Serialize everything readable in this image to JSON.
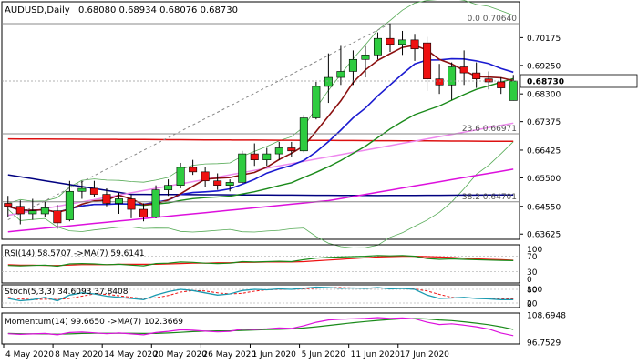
{
  "chart_data": {
    "type": "candlestick",
    "main": {
      "title": "AUDUSD,Daily",
      "ohlc": "0.68080 0.68934 0.68076 0.68730",
      "last_price": "0.68730",
      "ylim": [
        0.6345,
        0.7137
      ],
      "y_ticks": [
        "0.70175",
        "0.69250",
        "0.68300",
        "0.67375",
        "0.66425",
        "0.65500",
        "0.64550",
        "0.63625"
      ],
      "fib_levels": [
        {
          "label": "0.0 0.70640",
          "value": 0.7064
        },
        {
          "label": "23.6 0.66971",
          "value": 0.66971
        },
        {
          "label": "38.2 0.64701",
          "value": 0.64701
        }
      ],
      "candles": [
        {
          "o": 0.6465,
          "h": 0.649,
          "l": 0.642,
          "c": 0.6455
        },
        {
          "o": 0.6455,
          "h": 0.6475,
          "l": 0.6395,
          "c": 0.643
        },
        {
          "o": 0.643,
          "h": 0.648,
          "l": 0.641,
          "c": 0.644
        },
        {
          "o": 0.643,
          "h": 0.647,
          "l": 0.642,
          "c": 0.645
        },
        {
          "o": 0.644,
          "h": 0.646,
          "l": 0.638,
          "c": 0.64
        },
        {
          "o": 0.641,
          "h": 0.654,
          "l": 0.6405,
          "c": 0.6505
        },
        {
          "o": 0.6505,
          "h": 0.654,
          "l": 0.648,
          "c": 0.6515
        },
        {
          "o": 0.6515,
          "h": 0.654,
          "l": 0.6485,
          "c": 0.6495
        },
        {
          "o": 0.6495,
          "h": 0.6515,
          "l": 0.6455,
          "c": 0.6465
        },
        {
          "o": 0.6465,
          "h": 0.65,
          "l": 0.643,
          "c": 0.648
        },
        {
          "o": 0.648,
          "h": 0.6495,
          "l": 0.6415,
          "c": 0.6445
        },
        {
          "o": 0.6445,
          "h": 0.6465,
          "l": 0.6405,
          "c": 0.642
        },
        {
          "o": 0.642,
          "h": 0.6525,
          "l": 0.6415,
          "c": 0.651
        },
        {
          "o": 0.651,
          "h": 0.6545,
          "l": 0.649,
          "c": 0.6525
        },
        {
          "o": 0.6525,
          "h": 0.66,
          "l": 0.6515,
          "c": 0.6585
        },
        {
          "o": 0.6585,
          "h": 0.661,
          "l": 0.656,
          "c": 0.657
        },
        {
          "o": 0.657,
          "h": 0.6585,
          "l": 0.652,
          "c": 0.654
        },
        {
          "o": 0.654,
          "h": 0.6565,
          "l": 0.651,
          "c": 0.6525
        },
        {
          "o": 0.6525,
          "h": 0.6545,
          "l": 0.6505,
          "c": 0.6535
        },
        {
          "o": 0.6535,
          "h": 0.664,
          "l": 0.653,
          "c": 0.663
        },
        {
          "o": 0.663,
          "h": 0.6665,
          "l": 0.659,
          "c": 0.661
        },
        {
          "o": 0.661,
          "h": 0.665,
          "l": 0.659,
          "c": 0.663
        },
        {
          "o": 0.663,
          "h": 0.667,
          "l": 0.661,
          "c": 0.665
        },
        {
          "o": 0.665,
          "h": 0.667,
          "l": 0.662,
          "c": 0.664
        },
        {
          "o": 0.664,
          "h": 0.676,
          "l": 0.6635,
          "c": 0.675
        },
        {
          "o": 0.675,
          "h": 0.687,
          "l": 0.6745,
          "c": 0.6855
        },
        {
          "o": 0.6855,
          "h": 0.6965,
          "l": 0.68,
          "c": 0.6885
        },
        {
          "o": 0.6885,
          "h": 0.699,
          "l": 0.686,
          "c": 0.6905
        },
        {
          "o": 0.6905,
          "h": 0.6975,
          "l": 0.686,
          "c": 0.6945
        },
        {
          "o": 0.6945,
          "h": 0.699,
          "l": 0.6885,
          "c": 0.696
        },
        {
          "o": 0.696,
          "h": 0.7035,
          "l": 0.6945,
          "c": 0.7015
        },
        {
          "o": 0.7015,
          "h": 0.7065,
          "l": 0.697,
          "c": 0.6995
        },
        {
          "o": 0.6995,
          "h": 0.704,
          "l": 0.696,
          "c": 0.701
        },
        {
          "o": 0.701,
          "h": 0.703,
          "l": 0.694,
          "c": 0.698
        },
        {
          "o": 0.7,
          "h": 0.702,
          "l": 0.684,
          "c": 0.688
        },
        {
          "o": 0.688,
          "h": 0.693,
          "l": 0.683,
          "c": 0.686
        },
        {
          "o": 0.686,
          "h": 0.6935,
          "l": 0.681,
          "c": 0.692
        },
        {
          "o": 0.692,
          "h": 0.6975,
          "l": 0.686,
          "c": 0.69
        },
        {
          "o": 0.69,
          "h": 0.6935,
          "l": 0.685,
          "c": 0.688
        },
        {
          "o": 0.688,
          "h": 0.6905,
          "l": 0.6845,
          "c": 0.687
        },
        {
          "o": 0.687,
          "h": 0.6885,
          "l": 0.683,
          "c": 0.685
        },
        {
          "o": 0.6808,
          "h": 0.68934,
          "l": 0.68076,
          "c": 0.6873
        }
      ]
    },
    "rsi": {
      "label": "RSI(14) 58.5707 ->MA(7) 59.6141",
      "y_ticks": [
        "100",
        "70",
        "30",
        "0"
      ],
      "ylim": [
        0,
        100
      ],
      "values": [
        46,
        45,
        46,
        47,
        44,
        50,
        51,
        50,
        48,
        49,
        47,
        45,
        51,
        52,
        55,
        54,
        52,
        51,
        52,
        56,
        55,
        56,
        57,
        56,
        61,
        65,
        67,
        68,
        69,
        70,
        72,
        71,
        72,
        70,
        64,
        62,
        63,
        62,
        61,
        60,
        59,
        58.57
      ],
      "ma": [
        48,
        47,
        47,
        46,
        46,
        47,
        48,
        48,
        48,
        49,
        49,
        49,
        49,
        50,
        51,
        52,
        52,
        53,
        53,
        54,
        54,
        55,
        55,
        55,
        56,
        58,
        60,
        62,
        64,
        66,
        68,
        69,
        70,
        70,
        69,
        68,
        67,
        65,
        63,
        62,
        61,
        59.61
      ]
    },
    "stoch": {
      "label": "Stoch(5,3,3) 34.6093 37.8408",
      "y_ticks": [
        "100",
        "80",
        "20",
        "0"
      ],
      "ylim": [
        0,
        100
      ],
      "main": [
        40,
        30,
        35,
        45,
        30,
        55,
        65,
        60,
        50,
        45,
        40,
        35,
        55,
        70,
        80,
        75,
        65,
        55,
        60,
        75,
        80,
        78,
        82,
        80,
        85,
        90,
        88,
        85,
        86,
        84,
        88,
        82,
        84,
        80,
        55,
        40,
        42,
        45,
        40,
        38,
        35,
        34.61
      ],
      "signal": [
        45,
        38,
        35,
        37,
        36,
        40,
        50,
        60,
        58,
        52,
        45,
        40,
        43,
        53,
        68,
        75,
        73,
        65,
        60,
        63,
        72,
        78,
        80,
        80,
        82,
        85,
        88,
        88,
        86,
        85,
        86,
        85,
        85,
        82,
        73,
        58,
        45,
        42,
        42,
        41,
        38,
        37.84
      ]
    },
    "momentum": {
      "label": "Momentum(14) 99.6650 ->MA(7) 102.3669",
      "y_ticks": [
        "108.6948",
        "96.7529"
      ],
      "ylim": [
        96.0,
        109.5
      ],
      "values": [
        100.5,
        100.2,
        100.4,
        100.6,
        100.0,
        101.0,
        101.2,
        100.9,
        100.5,
        100.8,
        100.4,
        100.0,
        101.0,
        101.5,
        102.2,
        102.0,
        101.6,
        101.3,
        101.5,
        102.5,
        102.3,
        102.6,
        103.0,
        102.8,
        104.0,
        105.5,
        106.5,
        106.8,
        107.0,
        107.2,
        107.5,
        107.2,
        107.4,
        107.0,
        105.5,
        104.5,
        104.8,
        104.2,
        103.5,
        102.5,
        100.8,
        99.665
      ],
      "ma": [
        100.6,
        100.5,
        100.4,
        100.4,
        100.3,
        100.4,
        100.6,
        100.7,
        100.7,
        100.7,
        100.7,
        100.6,
        100.6,
        100.8,
        101.1,
        101.4,
        101.6,
        101.7,
        101.7,
        101.9,
        102.1,
        102.3,
        102.4,
        102.6,
        103.0,
        103.5,
        104.1,
        104.7,
        105.3,
        105.8,
        106.3,
        106.7,
        107.0,
        107.1,
        106.9,
        106.5,
        106.2,
        105.7,
        105.1,
        104.4,
        103.5,
        102.3669
      ]
    },
    "x_labels": [
      {
        "label": "4 May 2020",
        "index": 0
      },
      {
        "label": "8 May 2020",
        "index": 4
      },
      {
        "label": "14 May 2020",
        "index": 8
      },
      {
        "label": "20 May 2020",
        "index": 12
      },
      {
        "label": "26 May 2020",
        "index": 16
      },
      {
        "label": "1 Jun 2020",
        "index": 20
      },
      {
        "label": "5 Jun 2020",
        "index": 24
      },
      {
        "label": "11 Jun 2020",
        "index": 28
      },
      {
        "label": "17 Jun 2020",
        "index": 32
      }
    ],
    "colors": {
      "bull": "#2ecc40",
      "bear": "#ee1111",
      "ma_fast": "#8b1010",
      "ma_blue": "#1a1ad0",
      "ma_green": "#1a8a1a",
      "ma_violet": "#ee88ee",
      "ma_magenta": "#dd10dd",
      "ma_red_flat": "#dd1111",
      "ma_navy": "#000080",
      "bollinger": "#55aa55",
      "axis_text": "#000000"
    }
  }
}
